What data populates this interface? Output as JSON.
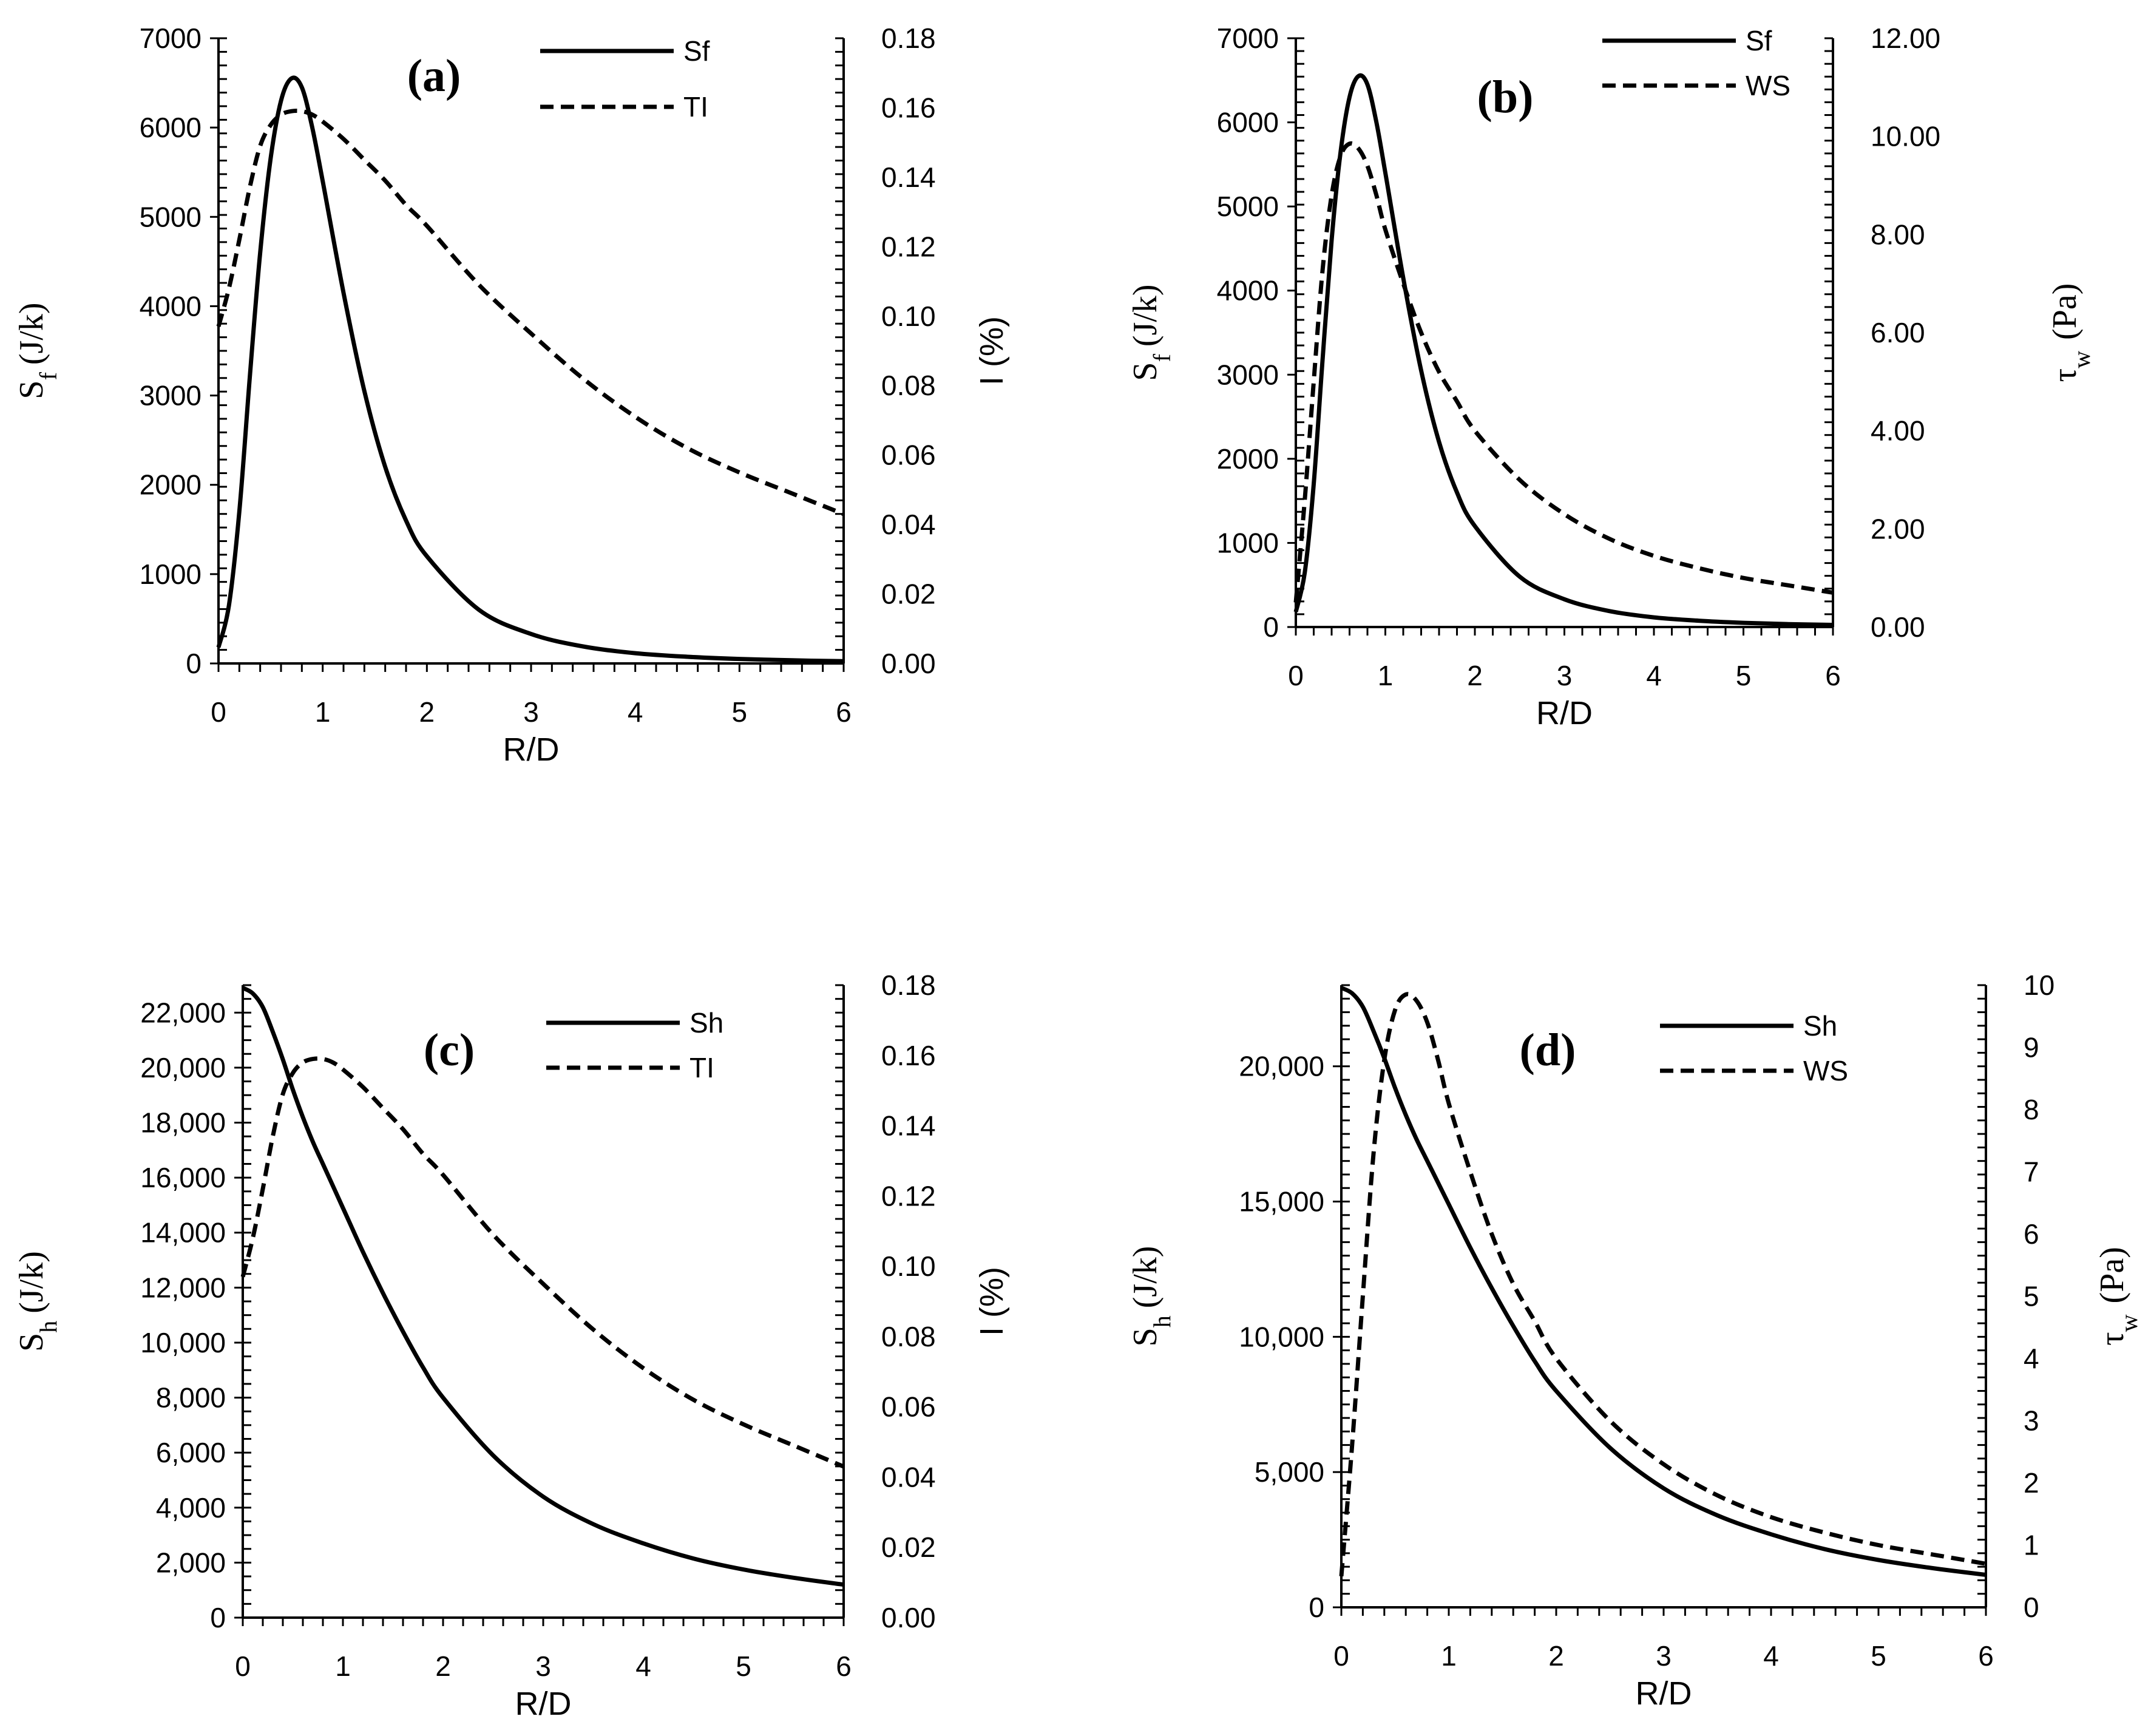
{
  "chart_data": [
    {
      "type": "line",
      "panel": "(a)",
      "xlabel": "R/D",
      "x_ticks": [
        "0",
        "1",
        "2",
        "3",
        "4",
        "5",
        "6"
      ],
      "xlim": [
        0,
        6
      ],
      "ylabel_left": {
        "main": "S",
        "sub": "f",
        "unit": "(J/k)"
      },
      "ylim_left": [
        0,
        7000
      ],
      "y_ticks_left": [
        "0",
        "1000",
        "2000",
        "3000",
        "4000",
        "5000",
        "6000",
        "7000"
      ],
      "ylabel_right": {
        "text": "I (%)"
      },
      "ylim_right": [
        0,
        0.18
      ],
      "y_ticks_right": [
        "0.00",
        "0.02",
        "0.04",
        "0.06",
        "0.08",
        "0.10",
        "0.12",
        "0.14",
        "0.16",
        "0.18"
      ],
      "series": [
        {
          "name": "Sf",
          "axis": "left",
          "style": "solid",
          "x": [
            0,
            0.1,
            0.2,
            0.3,
            0.4,
            0.5,
            0.6,
            0.7,
            0.8,
            0.9,
            1.0,
            1.2,
            1.4,
            1.6,
            1.8,
            2.0,
            2.5,
            3.0,
            3.5,
            4.0,
            4.5,
            5.0,
            5.5,
            6.0
          ],
          "values": [
            180,
            650,
            1700,
            3200,
            4600,
            5650,
            6300,
            6550,
            6450,
            6000,
            5400,
            4150,
            3050,
            2200,
            1600,
            1200,
            600,
            330,
            190,
            115,
            75,
            50,
            35,
            25
          ]
        },
        {
          "name": "TI",
          "axis": "right",
          "style": "dashed",
          "x": [
            0,
            0.1,
            0.2,
            0.3,
            0.4,
            0.5,
            0.6,
            0.7,
            0.8,
            0.9,
            1.0,
            1.2,
            1.4,
            1.6,
            1.8,
            2.0,
            2.5,
            3.0,
            3.5,
            4.0,
            4.5,
            5.0,
            5.5,
            6.0
          ],
          "values": [
            0.097,
            0.108,
            0.122,
            0.137,
            0.149,
            0.155,
            0.158,
            0.159,
            0.159,
            0.158,
            0.156,
            0.151,
            0.145,
            0.139,
            0.132,
            0.126,
            0.109,
            0.095,
            0.082,
            0.071,
            0.062,
            0.055,
            0.049,
            0.043
          ]
        }
      ]
    },
    {
      "type": "line",
      "panel": "(b)",
      "xlabel": "R/D",
      "x_ticks": [
        "0",
        "1",
        "2",
        "3",
        "4",
        "5",
        "6"
      ],
      "xlim": [
        0,
        6
      ],
      "ylabel_left": {
        "main": "S",
        "sub": "f",
        "unit": "(J/k)"
      },
      "ylim_left": [
        0,
        7000
      ],
      "y_ticks_left": [
        "0",
        "1000",
        "2000",
        "3000",
        "4000",
        "5000",
        "6000",
        "7000"
      ],
      "ylabel_right": {
        "main": "τ",
        "sub": "w",
        "unit": "(Pa)"
      },
      "ylim_right": [
        0,
        12
      ],
      "y_ticks_right": [
        "0.00",
        "2.00",
        "4.00",
        "6.00",
        "8.00",
        "10.00",
        "12.00"
      ],
      "series": [
        {
          "name": "Sf",
          "axis": "left",
          "style": "solid",
          "x": [
            0,
            0.1,
            0.2,
            0.3,
            0.4,
            0.5,
            0.6,
            0.7,
            0.8,
            0.9,
            1.0,
            1.2,
            1.4,
            1.6,
            1.8,
            2.0,
            2.5,
            3.0,
            3.5,
            4.0,
            4.5,
            5.0,
            5.5,
            6.0
          ],
          "values": [
            180,
            650,
            1700,
            3200,
            4600,
            5650,
            6300,
            6550,
            6450,
            6000,
            5400,
            4150,
            3050,
            2200,
            1600,
            1200,
            600,
            330,
            190,
            115,
            75,
            50,
            35,
            25
          ]
        },
        {
          "name": "WS",
          "axis": "right",
          "style": "dashed",
          "x": [
            0,
            0.1,
            0.2,
            0.3,
            0.4,
            0.5,
            0.6,
            0.7,
            0.8,
            0.9,
            1.0,
            1.2,
            1.4,
            1.6,
            1.8,
            2.0,
            2.5,
            3.0,
            3.5,
            4.0,
            4.5,
            5.0,
            5.5,
            6.0
          ],
          "values": [
            0.5,
            2.6,
            5.0,
            7.3,
            8.8,
            9.6,
            9.85,
            9.75,
            9.4,
            8.8,
            8.1,
            7.0,
            6.0,
            5.2,
            4.6,
            4.0,
            3.0,
            2.3,
            1.8,
            1.45,
            1.2,
            1.0,
            0.85,
            0.7
          ]
        }
      ]
    },
    {
      "type": "line",
      "panel": "(c)",
      "xlabel": "R/D",
      "x_ticks": [
        "0",
        "1",
        "2",
        "3",
        "4",
        "5",
        "6"
      ],
      "xlim": [
        0,
        6
      ],
      "ylabel_left": {
        "main": "S",
        "sub": "h",
        "unit": "(J/k)"
      },
      "ylim_left": [
        0,
        23000
      ],
      "y_ticks_left": [
        "0",
        "2,000",
        "4,000",
        "6,000",
        "8,000",
        "10,000",
        "12,000",
        "14,000",
        "16,000",
        "18,000",
        "20,000",
        "22,000"
      ],
      "ylabel_right": {
        "text": "I (%)"
      },
      "ylim_right": [
        0,
        0.18
      ],
      "y_ticks_right": [
        "0.00",
        "0.02",
        "0.04",
        "0.06",
        "0.08",
        "0.10",
        "0.12",
        "0.14",
        "0.16",
        "0.18"
      ],
      "series": [
        {
          "name": "Sh",
          "axis": "left",
          "style": "solid",
          "x": [
            0,
            0.1,
            0.2,
            0.3,
            0.4,
            0.5,
            0.6,
            0.7,
            0.8,
            0.9,
            1.0,
            1.2,
            1.4,
            1.6,
            1.8,
            2.0,
            2.5,
            3.0,
            3.5,
            4.0,
            4.5,
            5.0,
            5.5,
            6.0
          ],
          "values": [
            22900,
            22700,
            22200,
            21300,
            20300,
            19200,
            18200,
            17300,
            16500,
            15700,
            14900,
            13300,
            11800,
            10400,
            9100,
            8000,
            5900,
            4400,
            3400,
            2700,
            2150,
            1750,
            1450,
            1200
          ]
        },
        {
          "name": "TI",
          "axis": "right",
          "style": "dashed",
          "x": [
            0,
            0.1,
            0.2,
            0.3,
            0.4,
            0.5,
            0.6,
            0.7,
            0.8,
            0.9,
            1.0,
            1.2,
            1.4,
            1.6,
            1.8,
            2.0,
            2.5,
            3.0,
            3.5,
            4.0,
            4.5,
            5.0,
            5.5,
            6.0
          ],
          "values": [
            0.097,
            0.108,
            0.122,
            0.137,
            0.149,
            0.155,
            0.158,
            0.159,
            0.159,
            0.158,
            0.156,
            0.151,
            0.145,
            0.139,
            0.132,
            0.126,
            0.109,
            0.095,
            0.082,
            0.071,
            0.062,
            0.055,
            0.049,
            0.043
          ]
        }
      ]
    },
    {
      "type": "line",
      "panel": "(d)",
      "xlabel": "R/D",
      "x_ticks": [
        "0",
        "1",
        "2",
        "3",
        "4",
        "5",
        "6"
      ],
      "xlim": [
        0,
        6
      ],
      "ylabel_left": {
        "main": "S",
        "sub": "h",
        "unit": "(J/k)"
      },
      "ylim_left": [
        0,
        23000
      ],
      "y_ticks_left": [
        "0",
        "5,000",
        "10,000",
        "15,000",
        "20,000"
      ],
      "ylabel_right": {
        "main": "τ",
        "sub": "w",
        "unit": "(Pa)"
      },
      "ylim_right": [
        0,
        10
      ],
      "y_ticks_right": [
        "0",
        "1",
        "2",
        "3",
        "4",
        "5",
        "6",
        "7",
        "8",
        "9",
        "10"
      ],
      "series": [
        {
          "name": "Sh",
          "axis": "left",
          "style": "solid",
          "x": [
            0,
            0.1,
            0.2,
            0.3,
            0.4,
            0.5,
            0.6,
            0.7,
            0.8,
            0.9,
            1.0,
            1.2,
            1.4,
            1.6,
            1.8,
            2.0,
            2.5,
            3.0,
            3.5,
            4.0,
            4.5,
            5.0,
            5.5,
            6.0
          ],
          "values": [
            22900,
            22700,
            22200,
            21300,
            20300,
            19200,
            18200,
            17300,
            16500,
            15700,
            14900,
            13300,
            11800,
            10400,
            9100,
            8000,
            5900,
            4400,
            3400,
            2700,
            2150,
            1750,
            1450,
            1200
          ]
        },
        {
          "name": "WS",
          "axis": "right",
          "style": "dashed",
          "x": [
            0,
            0.1,
            0.2,
            0.3,
            0.4,
            0.5,
            0.6,
            0.7,
            0.8,
            0.9,
            1.0,
            1.2,
            1.4,
            1.6,
            1.8,
            2.0,
            2.5,
            3.0,
            3.5,
            4.0,
            4.5,
            5.0,
            5.5,
            6.0
          ],
          "values": [
            0.5,
            2.6,
            5.0,
            7.3,
            8.8,
            9.6,
            9.85,
            9.75,
            9.4,
            8.8,
            8.1,
            7.0,
            6.0,
            5.2,
            4.6,
            4.0,
            3.0,
            2.3,
            1.8,
            1.45,
            1.2,
            1.0,
            0.85,
            0.7
          ]
        }
      ]
    }
  ]
}
